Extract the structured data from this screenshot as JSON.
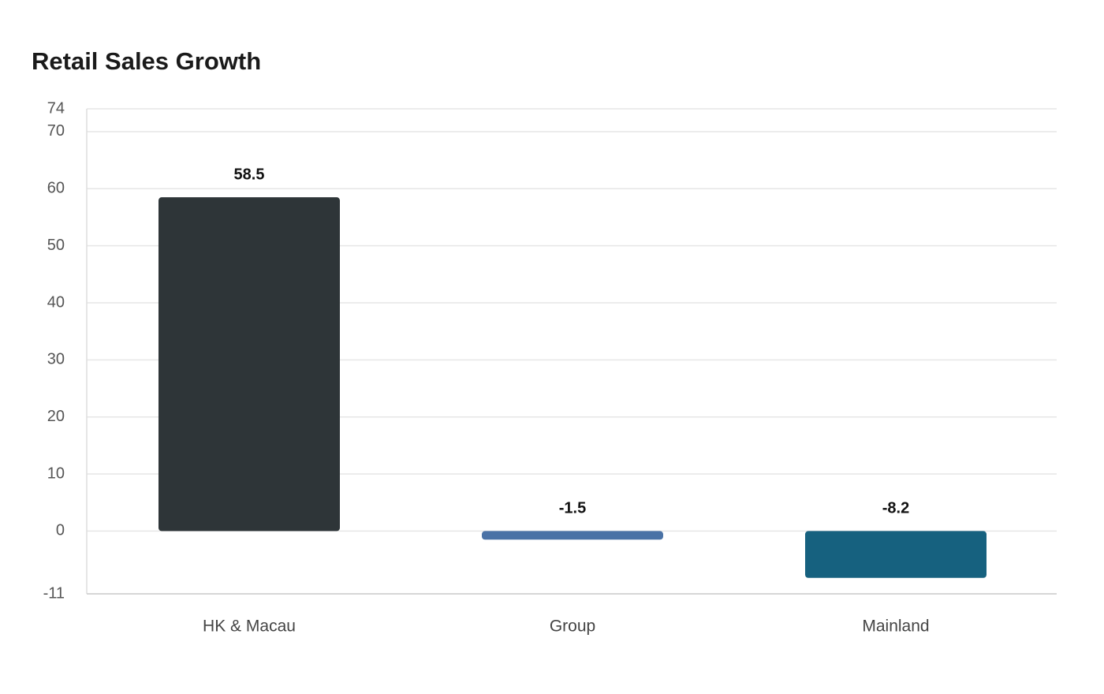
{
  "chart_data": {
    "type": "bar",
    "title": "Retail Sales Growth",
    "categories": [
      "HK & Macau",
      "Group",
      "Mainland"
    ],
    "values": [
      58.5,
      -1.5,
      -8.2
    ],
    "colors": [
      "#2e3538",
      "#4a72a6",
      "#16617f"
    ],
    "ylim": [
      -11,
      74
    ],
    "yticks": [
      -11,
      0,
      10,
      20,
      30,
      40,
      50,
      60,
      70,
      74
    ],
    "grid": true
  }
}
